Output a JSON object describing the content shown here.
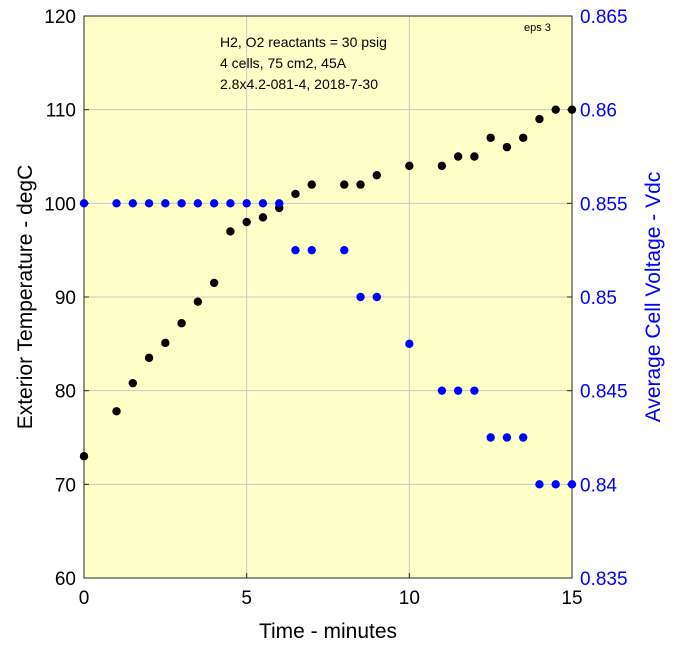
{
  "chart_data": {
    "type": "scatter",
    "annotation_lines": [
      "H2, O2 reactants = 30 psig",
      "4 cells, 75 cm2, 45A",
      "2.8x4.2-081-4,  2018-7-30"
    ],
    "corner_tag": "eps 3",
    "xlabel": "Time - minutes",
    "ylabel_left": "Exterior Temperature - degC",
    "ylabel_right": "Average Cell Voltage - Vdc",
    "xlim": [
      0,
      15
    ],
    "ylim_left": [
      60,
      120
    ],
    "ylim_right": [
      0.835,
      0.865
    ],
    "x_ticks": [
      0,
      5,
      10,
      15
    ],
    "y_ticks_left": [
      60,
      70,
      80,
      90,
      100,
      110,
      120
    ],
    "y_ticks_right": [
      "0.835",
      "0.84",
      "0.845",
      "0.85",
      "0.855",
      "0.86",
      "0.865"
    ],
    "grid": true,
    "colors": {
      "plot_background": "#ffffc8",
      "left_series": "#000000",
      "right_series": "#0000ff",
      "grid": "#c8c8c8"
    },
    "series": [
      {
        "axis": "left",
        "x": [
          0,
          1,
          1.5,
          2,
          2.5,
          3,
          3.5,
          4,
          4.5,
          5,
          5.5,
          6,
          6.5,
          7,
          8,
          8.5,
          9,
          10,
          11,
          11.5,
          12,
          12.5,
          13,
          13.5,
          14,
          14.5,
          15
        ],
        "y": [
          73,
          77.8,
          80.8,
          83.5,
          85.1,
          87.2,
          89.5,
          91.5,
          97,
          98,
          98.5,
          99.5,
          101,
          102,
          102,
          102,
          103,
          104,
          104,
          105,
          105,
          107,
          106,
          107,
          109,
          110,
          110
        ]
      },
      {
        "axis": "right",
        "x": [
          0,
          1,
          1.5,
          2,
          2.5,
          3,
          3.5,
          4,
          4.5,
          5,
          5.5,
          6,
          6.5,
          7,
          8,
          8.5,
          9,
          10,
          11,
          11.5,
          12,
          12.5,
          13,
          13.5,
          14,
          14.5,
          15
        ],
        "y": [
          0.855,
          0.855,
          0.855,
          0.855,
          0.855,
          0.855,
          0.855,
          0.855,
          0.855,
          0.855,
          0.855,
          0.855,
          0.8525,
          0.8525,
          0.8525,
          0.85,
          0.85,
          0.8475,
          0.845,
          0.845,
          0.845,
          0.8425,
          0.8425,
          0.8425,
          0.84,
          0.84,
          0.84
        ]
      }
    ]
  }
}
